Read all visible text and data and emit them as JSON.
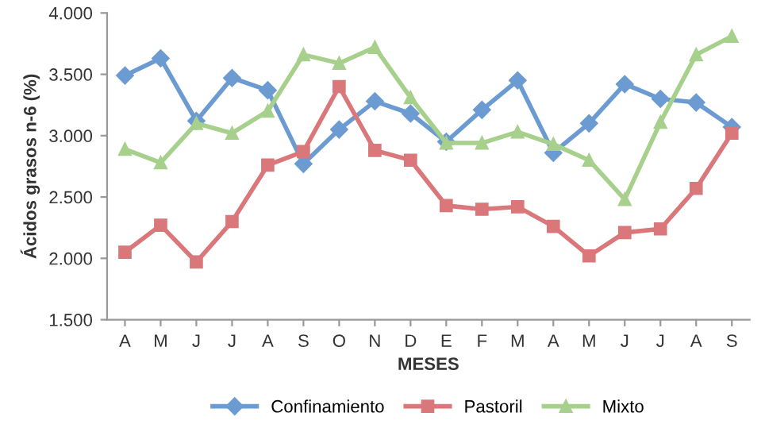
{
  "chart_data": {
    "type": "line",
    "xlabel": "MESES",
    "ylabel": "Ácidos grasos n-6 (%)",
    "categories": [
      "A",
      "M",
      "J",
      "J",
      "A",
      "S",
      "O",
      "N",
      "D",
      "E",
      "F",
      "M",
      "A",
      "M",
      "J",
      "J",
      "A",
      "S"
    ],
    "series": [
      {
        "name": "Confinamiento",
        "color": "#6b9bd1",
        "marker": "diamond",
        "values": [
          3.49,
          3.63,
          3.12,
          3.47,
          3.37,
          2.77,
          3.05,
          3.28,
          3.18,
          2.95,
          3.21,
          3.45,
          2.86,
          3.1,
          3.42,
          3.3,
          3.27,
          3.07
        ]
      },
      {
        "name": "Pastoril",
        "color": "#d9777a",
        "marker": "square",
        "values": [
          2.05,
          2.27,
          1.97,
          2.3,
          2.76,
          2.87,
          3.4,
          2.88,
          2.8,
          2.43,
          2.4,
          2.42,
          2.26,
          2.02,
          2.21,
          2.24,
          2.57,
          3.02
        ]
      },
      {
        "name": "Mixto",
        "color": "#a8d08d",
        "marker": "triangle",
        "values": [
          2.89,
          2.78,
          3.1,
          3.02,
          3.2,
          3.66,
          3.59,
          3.72,
          3.31,
          2.94,
          2.94,
          3.03,
          2.93,
          2.8,
          2.48,
          3.11,
          3.66,
          3.81
        ]
      }
    ],
    "ylim": [
      1.5,
      4.0
    ],
    "yticks": [
      {
        "value": 1.5,
        "label": "1.500"
      },
      {
        "value": 2.0,
        "label": "2.000"
      },
      {
        "value": 2.5,
        "label": "2.500"
      },
      {
        "value": 3.0,
        "label": "3.000"
      },
      {
        "value": 3.5,
        "label": "3.500"
      },
      {
        "value": 4.0,
        "label": "4.000"
      }
    ],
    "grid": false,
    "legend": "bottom",
    "line_style": "solid"
  }
}
